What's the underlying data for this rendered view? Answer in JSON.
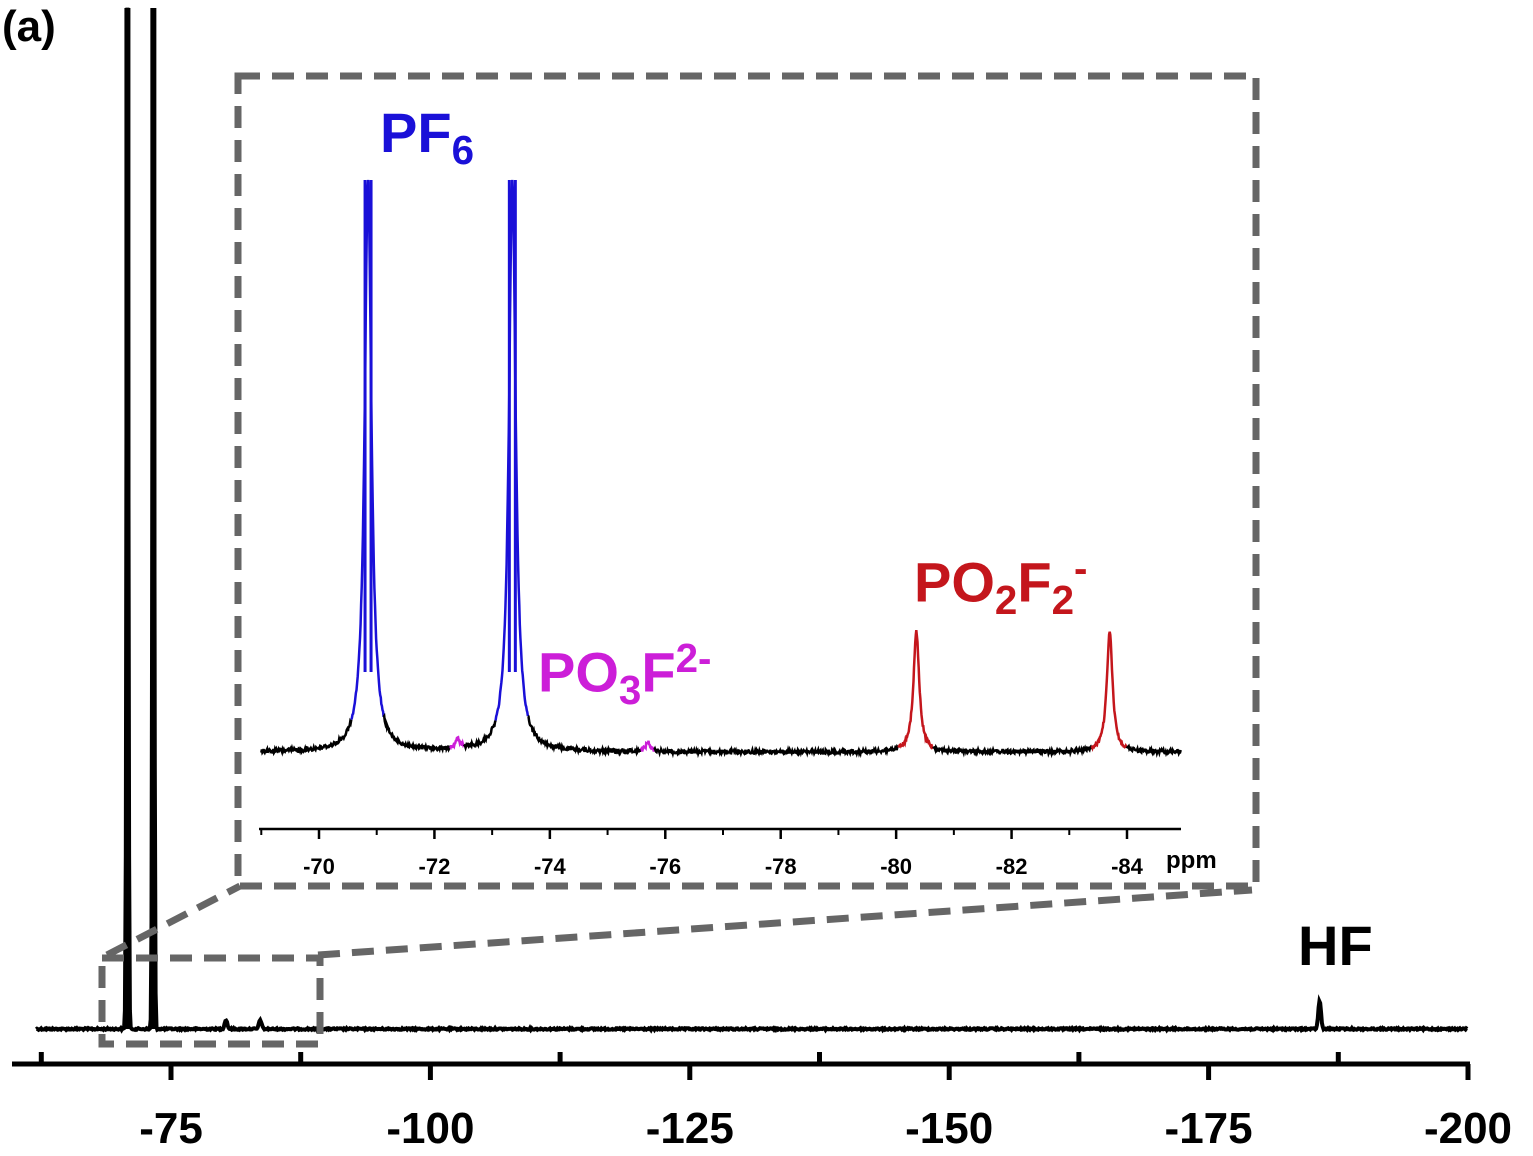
{
  "panel_label": "(a)",
  "colors": {
    "main": "#000000",
    "pf6": "#1a10d8",
    "po3f": "#cc1ed8",
    "po2f2": "#c4161c",
    "box": "#666666"
  },
  "peak_labels": {
    "pf6": {
      "base": "PF",
      "sub": "6",
      "sup": ""
    },
    "po3f": {
      "base": "PO",
      "sub": "3",
      "mid": "F",
      "sup": "2-"
    },
    "po2f2": {
      "base": "PO",
      "sub": "2",
      "mid": "F",
      "sub2": "2",
      "sup": "-"
    },
    "hf": {
      "base": "HF"
    }
  },
  "chart_data": [
    {
      "type": "line",
      "name": "main-spectrum",
      "x_unit": "ppm",
      "xlim": [
        -62,
        -200
      ],
      "x_ticks": [
        -75,
        -100,
        -125,
        -150,
        -175,
        -200
      ],
      "x_ticklabels": [
        "-75",
        "-100",
        "-125",
        "-150",
        "-175",
        "-200"
      ],
      "x_minor_ticks": [
        -62.5,
        -87.5,
        -112.5,
        -137.5,
        -162.5,
        -187.5
      ],
      "peaks": [
        {
          "x": -70.8,
          "y": 100,
          "clipped": true
        },
        {
          "x": -73.3,
          "y": 100,
          "clipped": true
        },
        {
          "x": -80.3,
          "y": 0.9
        },
        {
          "x": -83.6,
          "y": 0.9
        },
        {
          "x": -185.7,
          "y": 2.8,
          "label": "HF"
        }
      ],
      "zoom_region": [
        -69,
        -85
      ]
    },
    {
      "type": "line",
      "name": "inset-spectrum",
      "x_unit": "ppm",
      "xlabel": "ppm",
      "xlim": [
        -69,
        -85
      ],
      "x_ticks": [
        -70,
        -72,
        -74,
        -76,
        -78,
        -80,
        -82,
        -84
      ],
      "x_ticklabels": [
        "-70",
        "-72",
        "-74",
        "-76",
        "-78",
        "-80",
        "-82",
        "-84"
      ],
      "peaks": [
        {
          "x": -70.85,
          "y": 100,
          "species": "PF6",
          "clipped": true
        },
        {
          "x": -73.35,
          "y": 100,
          "species": "PF6",
          "clipped": true
        },
        {
          "x": -72.4,
          "y": 1.6,
          "species": "PO3F2-"
        },
        {
          "x": -75.7,
          "y": 1.6,
          "species": "PO3F2-"
        },
        {
          "x": -80.35,
          "y": 21,
          "species": "PO2F2-"
        },
        {
          "x": -83.7,
          "y": 21,
          "species": "PO2F2-"
        }
      ]
    }
  ]
}
